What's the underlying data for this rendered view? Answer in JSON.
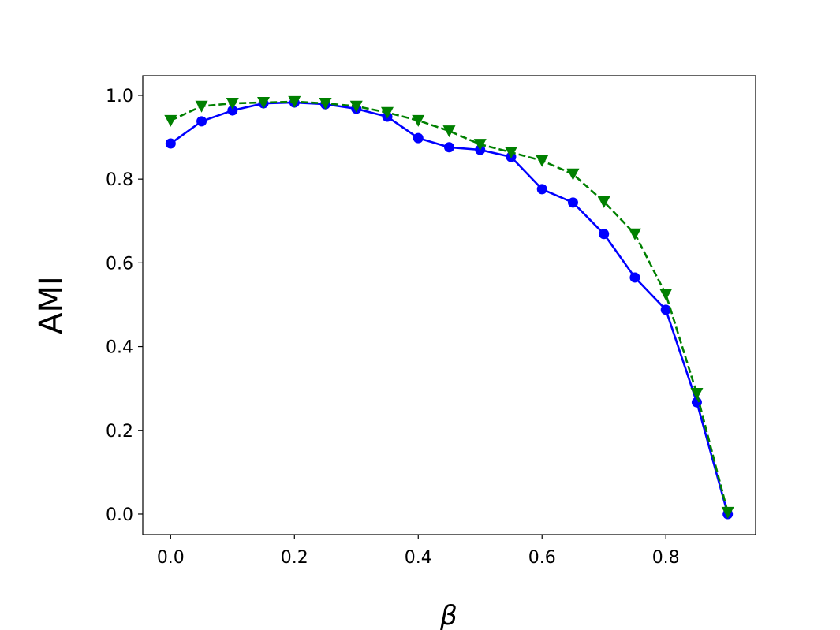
{
  "chart_data": {
    "type": "line",
    "xlabel": "β",
    "ylabel": "AMI",
    "x": [
      0,
      0.05,
      0.1,
      0.15,
      0.2,
      0.25,
      0.3,
      0.35,
      0.4,
      0.45,
      0.5,
      0.55,
      0.6,
      0.65,
      0.7,
      0.75,
      0.8,
      0.85,
      0.9
    ],
    "series": [
      {
        "color": "#0000ff",
        "marker": "circle",
        "linestyle": "solid",
        "values": [
          0.885,
          0.938,
          0.964,
          0.981,
          0.983,
          0.979,
          0.968,
          0.949,
          0.898,
          0.876,
          0.87,
          0.853,
          0.776,
          0.744,
          0.669,
          0.565,
          0.488,
          0.267,
          0.0
        ]
      },
      {
        "color": "#008000",
        "marker": "triangle-down",
        "linestyle": "dashed",
        "values": [
          0.94,
          0.974,
          0.981,
          0.983,
          0.985,
          0.981,
          0.974,
          0.959,
          0.94,
          0.915,
          0.883,
          0.864,
          0.844,
          0.812,
          0.746,
          0.669,
          0.525,
          0.288,
          0.004
        ]
      }
    ],
    "xlim": [
      -0.045,
      0.945
    ],
    "ylim": [
      -0.049,
      1.047
    ],
    "xticks": [
      {
        "value": 0,
        "label": "0.0"
      },
      0.2,
      0.4,
      0.6,
      0.8
    ],
    "yticks": [
      {
        "value": 0,
        "label": "0.0"
      },
      0.2,
      0.4,
      0.6,
      0.8,
      {
        "value": 1,
        "label": "1.0"
      }
    ],
    "grid": false
  }
}
